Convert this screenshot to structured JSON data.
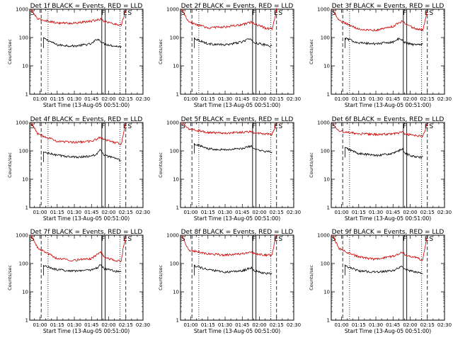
{
  "chart_data": [
    {
      "type": "line",
      "title": "Det 1f BLACK = Events, RED = LLD",
      "xlabel": "Start Time (13-Aug-05 00:51:00)",
      "ylabel": "Counts/sec",
      "y_scale": "log",
      "ylim": [
        1,
        1000
      ],
      "xlim": [
        "00:51",
        "02:30"
      ],
      "xticks": [
        "01:00",
        "01:15",
        "01:30",
        "01:45",
        "02:00",
        "02:15",
        "02:30"
      ],
      "yticks": [
        "1",
        "10",
        "100",
        "1000"
      ],
      "markers": [
        {
          "label": "S",
          "t": "00:51"
        },
        {
          "label": "F",
          "t": "01:53"
        },
        {
          "label": "E",
          "t": "02:12"
        },
        {
          "label": "S",
          "t": "02:16"
        }
      ],
      "dashed_lines": [
        "01:01",
        "02:15"
      ],
      "dotted_lines": [
        "01:07",
        "02:10"
      ],
      "solid_lines": [
        "01:54",
        "01:57"
      ],
      "series": [
        {
          "color": "#000000",
          "x": [
            "01:03",
            "01:15",
            "01:30",
            "01:45",
            "01:50",
            "01:53",
            "01:56",
            "02:05",
            "02:11"
          ],
          "values": [
            95,
            55,
            50,
            60,
            90,
            75,
            60,
            50,
            48
          ]
        },
        {
          "color": "#cc0000",
          "x": [
            "00:52",
            "00:58",
            "01:15",
            "01:30",
            "01:45",
            "01:53",
            "01:56",
            "02:05",
            "02:11",
            "02:13",
            "02:15"
          ],
          "values": [
            1000,
            450,
            330,
            320,
            380,
            450,
            380,
            300,
            280,
            500,
            1000
          ]
        }
      ]
    },
    {
      "type": "line",
      "title": "Det 2f BLACK = Events, RED = LLD",
      "xlabel": "Start Time (13-Aug-05 00:51:00)",
      "ylabel": "Counts/sec",
      "y_scale": "log",
      "ylim": [
        1,
        1000
      ],
      "xlim": [
        "00:51",
        "02:30"
      ],
      "xticks": [
        "01:00",
        "01:15",
        "01:30",
        "01:45",
        "02:00",
        "02:15",
        "02:30"
      ],
      "yticks": [
        "1",
        "10",
        "100",
        "1000"
      ],
      "markers": [
        {
          "label": "S",
          "t": "00:51"
        },
        {
          "label": "F",
          "t": "01:53"
        },
        {
          "label": "E",
          "t": "02:12"
        },
        {
          "label": "S",
          "t": "02:16"
        }
      ],
      "dashed_lines": [
        "01:01",
        "02:15"
      ],
      "dotted_lines": [
        "01:07",
        "02:10"
      ],
      "solid_lines": [
        "01:54",
        "01:57"
      ],
      "series": [
        {
          "color": "#000000",
          "x": [
            "01:03",
            "01:15",
            "01:30",
            "01:45",
            "01:50",
            "01:53",
            "01:56",
            "02:05",
            "02:11"
          ],
          "values": [
            95,
            60,
            55,
            70,
            90,
            80,
            65,
            55,
            50
          ]
        },
        {
          "color": "#cc0000",
          "x": [
            "00:52",
            "00:58",
            "01:15",
            "01:30",
            "01:45",
            "01:53",
            "01:56",
            "02:05",
            "02:11",
            "02:13",
            "02:15"
          ],
          "values": [
            1000,
            350,
            220,
            240,
            280,
            350,
            300,
            220,
            200,
            400,
            1000
          ]
        }
      ]
    },
    {
      "type": "line",
      "title": "Det 3f BLACK = Events, RED = LLD",
      "xlabel": "Start Time (13-Aug-05 00:51:00)",
      "ylabel": "Counts/sec",
      "y_scale": "log",
      "ylim": [
        1,
        1000
      ],
      "xlim": [
        "00:51",
        "02:30"
      ],
      "xticks": [
        "01:00",
        "01:15",
        "01:30",
        "01:45",
        "02:00",
        "02:15",
        "02:30"
      ],
      "yticks": [
        "1",
        "10",
        "100",
        "1000"
      ],
      "markers": [
        {
          "label": "S",
          "t": "00:51"
        },
        {
          "label": "F",
          "t": "01:53"
        },
        {
          "label": "E",
          "t": "02:12"
        },
        {
          "label": "S",
          "t": "02:16"
        }
      ],
      "dashed_lines": [
        "01:01",
        "02:15"
      ],
      "dotted_lines": [
        "01:07",
        "02:10"
      ],
      "solid_lines": [
        "01:54",
        "01:57"
      ],
      "series": [
        {
          "color": "#000000",
          "x": [
            "01:03",
            "01:15",
            "01:30",
            "01:45",
            "01:50",
            "01:53",
            "01:56",
            "02:05",
            "02:11"
          ],
          "values": [
            95,
            65,
            60,
            70,
            90,
            80,
            65,
            55,
            60
          ]
        },
        {
          "color": "#cc0000",
          "x": [
            "00:52",
            "00:58",
            "01:15",
            "01:30",
            "01:45",
            "01:53",
            "01:56",
            "02:05",
            "02:11",
            "02:13",
            "02:15"
          ],
          "values": [
            1000,
            400,
            200,
            180,
            250,
            380,
            300,
            200,
            180,
            400,
            1000
          ]
        }
      ]
    },
    {
      "type": "line",
      "title": "Det 4f BLACK = Events, RED = LLD",
      "xlabel": "Start Time (13-Aug-05 00:51:00)",
      "ylabel": "Counts/sec",
      "y_scale": "log",
      "ylim": [
        1,
        1000
      ],
      "xlim": [
        "00:51",
        "02:30"
      ],
      "xticks": [
        "01:00",
        "01:15",
        "01:30",
        "01:45",
        "02:00",
        "02:15",
        "02:30"
      ],
      "yticks": [
        "1",
        "10",
        "100",
        "1000"
      ],
      "markers": [
        {
          "label": "S",
          "t": "00:51"
        },
        {
          "label": "F",
          "t": "01:53"
        },
        {
          "label": "E",
          "t": "02:12"
        },
        {
          "label": "S",
          "t": "02:16"
        }
      ],
      "dashed_lines": [
        "01:01",
        "02:15"
      ],
      "dotted_lines": [
        "01:07",
        "02:10"
      ],
      "solid_lines": [
        "01:54",
        "01:57"
      ],
      "series": [
        {
          "color": "#000000",
          "x": [
            "01:03",
            "01:15",
            "01:30",
            "01:45",
            "01:50",
            "01:53",
            "01:56",
            "02:05",
            "02:11"
          ],
          "values": [
            90,
            70,
            60,
            65,
            80,
            110,
            70,
            55,
            45
          ]
        },
        {
          "color": "#cc0000",
          "x": [
            "00:52",
            "00:58",
            "01:15",
            "01:30",
            "01:45",
            "01:53",
            "01:56",
            "02:05",
            "02:11",
            "02:13",
            "02:15"
          ],
          "values": [
            1000,
            400,
            220,
            200,
            220,
            300,
            260,
            200,
            180,
            400,
            1000
          ]
        }
      ]
    },
    {
      "type": "line",
      "title": "Det 5f BLACK = Events, RED = LLD",
      "xlabel": "Start Time (13-Aug-05 00:51:00)",
      "ylabel": "Counts/sec",
      "y_scale": "log",
      "ylim": [
        1,
        1000
      ],
      "xlim": [
        "00:51",
        "02:30"
      ],
      "xticks": [
        "01:00",
        "01:15",
        "01:30",
        "01:45",
        "02:00",
        "02:15",
        "02:30"
      ],
      "yticks": [
        "1",
        "10",
        "100",
        "1000"
      ],
      "markers": [
        {
          "label": "S",
          "t": "00:51"
        },
        {
          "label": "F",
          "t": "01:53"
        },
        {
          "label": "E",
          "t": "02:12"
        },
        {
          "label": "S",
          "t": "02:16"
        }
      ],
      "dashed_lines": [
        "01:01",
        "02:15"
      ],
      "dotted_lines": [
        "01:07",
        "02:10"
      ],
      "solid_lines": [
        "01:54",
        "01:57"
      ],
      "series": [
        {
          "color": "#000000",
          "x": [
            "01:03",
            "01:15",
            "01:30",
            "01:45",
            "01:50",
            "01:53",
            "01:56",
            "02:05",
            "02:11"
          ],
          "values": [
            180,
            120,
            110,
            120,
            140,
            150,
            110,
            95,
            90
          ]
        },
        {
          "color": "#cc0000",
          "x": [
            "00:52",
            "00:58",
            "01:15",
            "01:30",
            "01:45",
            "01:53",
            "01:56",
            "02:05",
            "02:11",
            "02:13",
            "02:15"
          ],
          "values": [
            1000,
            600,
            450,
            430,
            450,
            480,
            420,
            400,
            380,
            600,
            1000
          ]
        }
      ]
    },
    {
      "type": "line",
      "title": "Det 6f BLACK = Events, RED = LLD",
      "xlabel": "Start Time (13-Aug-05 00:51:00)",
      "ylabel": "Counts/sec",
      "y_scale": "log",
      "ylim": [
        1,
        1000
      ],
      "xlim": [
        "00:51",
        "02:30"
      ],
      "xticks": [
        "01:00",
        "01:15",
        "01:30",
        "01:45",
        "02:00",
        "02:15",
        "02:30"
      ],
      "yticks": [
        "1",
        "10",
        "100",
        "1000"
      ],
      "markers": [
        {
          "label": "S",
          "t": "00:51"
        },
        {
          "label": "F",
          "t": "01:53"
        },
        {
          "label": "E",
          "t": "02:12"
        },
        {
          "label": "S",
          "t": "02:16"
        }
      ],
      "dashed_lines": [
        "01:01",
        "02:15"
      ],
      "dotted_lines": [
        "01:07",
        "02:10"
      ],
      "solid_lines": [
        "01:54",
        "01:57"
      ],
      "series": [
        {
          "color": "#000000",
          "x": [
            "01:03",
            "01:15",
            "01:30",
            "01:45",
            "01:50",
            "01:53",
            "01:56",
            "02:05",
            "02:11"
          ],
          "values": [
            130,
            80,
            70,
            80,
            100,
            120,
            80,
            60,
            60
          ]
        },
        {
          "color": "#cc0000",
          "x": [
            "00:52",
            "00:58",
            "01:15",
            "01:30",
            "01:45",
            "01:53",
            "01:56",
            "02:05",
            "02:11",
            "02:13",
            "02:15"
          ],
          "values": [
            1000,
            500,
            400,
            380,
            400,
            450,
            380,
            350,
            330,
            500,
            1000
          ]
        }
      ]
    },
    {
      "type": "line",
      "title": "Det 7f BLACK = Events, RED = LLD",
      "xlabel": "Start Time (13-Aug-05 00:51:00)",
      "ylabel": "Counts/sec",
      "y_scale": "log",
      "ylim": [
        1,
        1000
      ],
      "xlim": [
        "00:51",
        "02:30"
      ],
      "xticks": [
        "01:00",
        "01:15",
        "01:30",
        "01:45",
        "02:00",
        "02:15",
        "02:30"
      ],
      "yticks": [
        "1",
        "10",
        "100",
        "1000"
      ],
      "markers": [
        {
          "label": "S",
          "t": "00:51"
        },
        {
          "label": "F",
          "t": "01:53"
        },
        {
          "label": "E",
          "t": "02:12"
        },
        {
          "label": "S",
          "t": "02:16"
        }
      ],
      "dashed_lines": [
        "01:01",
        "02:15"
      ],
      "dotted_lines": [
        "01:07",
        "02:10"
      ],
      "solid_lines": [
        "01:54",
        "01:57"
      ],
      "series": [
        {
          "color": "#000000",
          "x": [
            "01:03",
            "01:15",
            "01:30",
            "01:45",
            "01:50",
            "01:53",
            "01:56",
            "02:05",
            "02:11"
          ],
          "values": [
            85,
            60,
            55,
            60,
            70,
            90,
            65,
            55,
            50
          ]
        },
        {
          "color": "#cc0000",
          "x": [
            "00:52",
            "00:58",
            "01:15",
            "01:30",
            "01:45",
            "01:53",
            "01:56",
            "02:05",
            "02:11",
            "02:13",
            "02:15"
          ],
          "values": [
            1000,
            350,
            150,
            130,
            150,
            250,
            170,
            130,
            120,
            400,
            1000
          ]
        }
      ]
    },
    {
      "type": "line",
      "title": "Det 8f BLACK = Events, RED = LLD",
      "xlabel": "Start Time (13-Aug-05 00:51:00)",
      "ylabel": "Counts/sec",
      "y_scale": "log",
      "ylim": [
        1,
        1000
      ],
      "xlim": [
        "00:51",
        "02:30"
      ],
      "xticks": [
        "01:00",
        "01:15",
        "01:30",
        "01:45",
        "02:00",
        "02:15",
        "02:30"
      ],
      "yticks": [
        "1",
        "10",
        "100",
        "1000"
      ],
      "markers": [
        {
          "label": "S",
          "t": "00:51"
        },
        {
          "label": "F",
          "t": "01:53"
        },
        {
          "label": "E",
          "t": "02:12"
        },
        {
          "label": "S",
          "t": "02:16"
        }
      ],
      "dashed_lines": [
        "01:01",
        "02:15"
      ],
      "dotted_lines": [
        "01:07",
        "02:10"
      ],
      "solid_lines": [
        "01:54",
        "01:57"
      ],
      "series": [
        {
          "color": "#000000",
          "x": [
            "01:03",
            "01:15",
            "01:30",
            "01:45",
            "01:50",
            "01:53",
            "01:56",
            "02:05",
            "02:11"
          ],
          "values": [
            85,
            60,
            50,
            55,
            65,
            70,
            55,
            45,
            45
          ]
        },
        {
          "color": "#cc0000",
          "x": [
            "00:52",
            "00:58",
            "01:15",
            "01:30",
            "01:45",
            "01:53",
            "01:56",
            "02:05",
            "02:11",
            "02:13",
            "02:15"
          ],
          "values": [
            1000,
            300,
            220,
            200,
            220,
            250,
            220,
            200,
            200,
            500,
            1000
          ]
        }
      ]
    },
    {
      "type": "line",
      "title": "Det 9f BLACK = Events, RED = LLD",
      "xlabel": "Start Time (13-Aug-05 00:51:00)",
      "ylabel": "Counts/sec",
      "y_scale": "log",
      "ylim": [
        1,
        1000
      ],
      "xlim": [
        "00:51",
        "02:30"
      ],
      "xticks": [
        "01:00",
        "01:15",
        "01:30",
        "01:45",
        "02:00",
        "02:15",
        "02:30"
      ],
      "yticks": [
        "1",
        "10",
        "100",
        "1000"
      ],
      "markers": [
        {
          "label": "S",
          "t": "00:51"
        },
        {
          "label": "F",
          "t": "01:53"
        },
        {
          "label": "E",
          "t": "02:12"
        },
        {
          "label": "S",
          "t": "02:16"
        }
      ],
      "dashed_lines": [
        "01:01",
        "02:15"
      ],
      "dotted_lines": [
        "01:07",
        "02:10"
      ],
      "solid_lines": [
        "01:54",
        "01:57"
      ],
      "series": [
        {
          "color": "#000000",
          "x": [
            "01:03",
            "01:15",
            "01:30",
            "01:45",
            "01:50",
            "01:53",
            "01:56",
            "02:05",
            "02:11"
          ],
          "values": [
            85,
            55,
            50,
            55,
            70,
            80,
            60,
            50,
            45
          ]
        },
        {
          "color": "#cc0000",
          "x": [
            "00:52",
            "00:58",
            "01:15",
            "01:30",
            "01:45",
            "01:53",
            "01:56",
            "02:05",
            "02:11",
            "02:13",
            "02:15"
          ],
          "values": [
            1000,
            330,
            170,
            140,
            180,
            250,
            200,
            160,
            130,
            400,
            1000
          ]
        }
      ]
    }
  ]
}
